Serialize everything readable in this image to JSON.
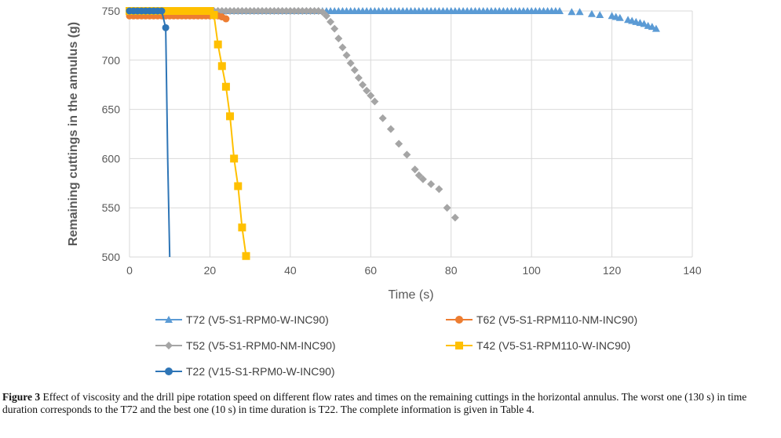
{
  "chart_data": {
    "type": "line",
    "xlabel": "Time (s)",
    "ylabel": "Remaining  cuttings  in the annulus (g)",
    "xlim": [
      0,
      140
    ],
    "ylim": [
      500,
      750
    ],
    "xticks": [
      0,
      20,
      40,
      60,
      80,
      100,
      120,
      140
    ],
    "yticks": [
      500,
      550,
      600,
      650,
      700,
      750
    ],
    "grid": true,
    "legend_position": "bottom",
    "series": [
      {
        "name": "T72 (V5-S1-RPM0-W-INC90)",
        "color": "#5b9bd5",
        "marker": "triangle",
        "x": [
          0,
          1,
          2,
          3,
          4,
          5,
          6,
          7,
          8,
          9,
          10,
          11,
          12,
          13,
          14,
          15,
          16,
          17,
          18,
          19,
          20,
          21,
          22,
          23,
          24,
          25,
          26,
          27,
          28,
          29,
          30,
          31,
          32,
          33,
          34,
          35,
          36,
          37,
          38,
          39,
          40,
          41,
          42,
          43,
          44,
          45,
          46,
          47,
          48,
          49,
          50,
          51,
          52,
          53,
          54,
          55,
          56,
          57,
          58,
          59,
          60,
          61,
          62,
          63,
          64,
          65,
          66,
          67,
          68,
          69,
          70,
          71,
          72,
          73,
          74,
          75,
          76,
          77,
          78,
          79,
          80,
          81,
          82,
          83,
          84,
          85,
          86,
          87,
          88,
          89,
          90,
          91,
          92,
          93,
          94,
          95,
          96,
          97,
          98,
          99,
          100,
          101,
          102,
          103,
          104,
          105,
          106,
          107,
          110,
          112,
          115,
          117,
          120,
          121,
          122,
          124,
          125,
          126,
          127,
          128,
          129,
          130,
          131
        ],
        "y": [
          750,
          750,
          750,
          750,
          750,
          750,
          750,
          750,
          750,
          750,
          750,
          750,
          750,
          750,
          750,
          750,
          750,
          750,
          750,
          750,
          750,
          750,
          750,
          750,
          750,
          750,
          750,
          750,
          750,
          750,
          750,
          750,
          750,
          750,
          750,
          750,
          750,
          750,
          750,
          750,
          750,
          750,
          750,
          750,
          750,
          750,
          750,
          750,
          750,
          750,
          750,
          750,
          750,
          750,
          750,
          750,
          750,
          750,
          750,
          750,
          750,
          750,
          750,
          750,
          750,
          750,
          750,
          750,
          750,
          750,
          750,
          750,
          750,
          750,
          750,
          750,
          750,
          750,
          750,
          750,
          750,
          750,
          750,
          750,
          750,
          750,
          750,
          750,
          750,
          750,
          750,
          750,
          750,
          750,
          750,
          750,
          750,
          750,
          750,
          750,
          750,
          750,
          750,
          750,
          750,
          750,
          750,
          750,
          749,
          749,
          747,
          746,
          745,
          744,
          743,
          741,
          740,
          739,
          738,
          737,
          735,
          734,
          732
        ]
      },
      {
        "name": "T62 (V5-S1-RPM110-NM-INC90)",
        "color": "#ed7d31",
        "marker": "circle",
        "x": [
          0,
          1,
          2,
          3,
          4,
          5,
          6,
          7,
          8,
          9,
          10,
          11,
          12,
          13,
          14,
          15,
          16,
          17,
          18,
          19,
          20,
          21,
          22,
          23,
          24
        ],
        "y": [
          745,
          745,
          745,
          745,
          745,
          745,
          745,
          745,
          745,
          745,
          745,
          745,
          745,
          745,
          745,
          745,
          745,
          745,
          745,
          745,
          745,
          745,
          745,
          744,
          742
        ]
      },
      {
        "name": "T52 (V5-S1-RPM0-NM-INC90)",
        "color": "#a5a5a5",
        "marker": "diamond",
        "x": [
          0,
          1,
          2,
          3,
          4,
          5,
          6,
          7,
          8,
          9,
          10,
          11,
          12,
          13,
          14,
          15,
          16,
          17,
          18,
          19,
          20,
          21,
          22,
          23,
          24,
          25,
          26,
          27,
          28,
          29,
          30,
          31,
          32,
          33,
          34,
          35,
          36,
          37,
          38,
          39,
          40,
          41,
          42,
          43,
          44,
          45,
          46,
          47,
          48,
          49,
          50,
          51,
          52,
          53,
          54,
          55,
          56,
          57,
          58,
          59,
          60,
          61,
          63,
          65,
          67,
          69,
          71,
          72,
          73,
          75,
          77,
          79,
          81
        ],
        "y": [
          750,
          750,
          750,
          750,
          750,
          750,
          750,
          750,
          750,
          750,
          750,
          750,
          750,
          750,
          750,
          750,
          750,
          750,
          750,
          750,
          750,
          750,
          750,
          750,
          750,
          750,
          750,
          750,
          750,
          750,
          750,
          750,
          750,
          750,
          750,
          750,
          750,
          750,
          750,
          750,
          750,
          750,
          750,
          750,
          750,
          750,
          750,
          750,
          749,
          745,
          739,
          732,
          722,
          713,
          705,
          697,
          690,
          682,
          675,
          669,
          664,
          658,
          641,
          630,
          615,
          604,
          589,
          583,
          579,
          574,
          569,
          550,
          540
        ]
      },
      {
        "name": "T42 (V5-S1-RPM110-W-INC90)",
        "color": "#ffc000",
        "marker": "square",
        "x": [
          0,
          1,
          2,
          3,
          4,
          5,
          6,
          7,
          8,
          9,
          10,
          11,
          12,
          13,
          14,
          15,
          16,
          17,
          18,
          19,
          20,
          21,
          22,
          23,
          24,
          25,
          26,
          27,
          28,
          29
        ],
        "y": [
          750,
          750,
          750,
          750,
          750,
          750,
          750,
          750,
          750,
          750,
          750,
          750,
          750,
          750,
          750,
          750,
          750,
          750,
          750,
          750,
          750,
          746,
          716,
          694,
          673,
          643,
          600,
          572,
          530,
          501
        ]
      },
      {
        "name": "T22 (V15-S1-RPM0-W-INC90)",
        "color": "#2e75b6",
        "marker": "circle",
        "x": [
          0,
          1,
          2,
          3,
          4,
          5,
          6,
          7,
          8,
          9,
          9.5,
          10
        ],
        "y": [
          750,
          750,
          750,
          750,
          750,
          750,
          750,
          750,
          750,
          733,
          600,
          500
        ]
      }
    ]
  },
  "caption": {
    "label": "Figure 3",
    "text": " Effect of viscosity and the drill pipe rotation speed on different flow rates and times on the remaining cuttings in the horizontal annulus. The worst one (130 s) in time duration corresponds to the T72 and the best one (10 s) in time duration is T22. The complete information is given in Table 4."
  }
}
